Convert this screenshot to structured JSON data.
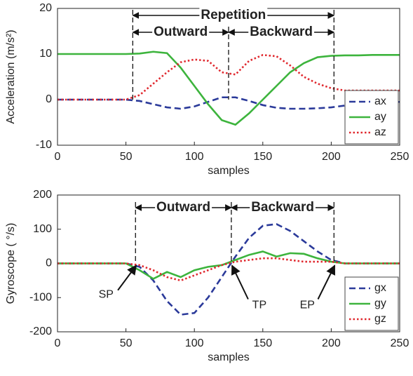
{
  "chart_data": [
    {
      "type": "line",
      "ylabel": "Acceleration (m/s²)",
      "xlabel": "samples",
      "x": [
        0,
        10,
        20,
        30,
        40,
        50,
        60,
        70,
        80,
        90,
        100,
        110,
        120,
        130,
        140,
        150,
        160,
        170,
        180,
        190,
        200,
        210,
        220,
        230,
        240,
        250
      ],
      "series": [
        {
          "name": "ax",
          "color": "#2b3a9a",
          "dash": "dashed",
          "values": [
            0,
            0,
            0,
            0,
            0,
            0,
            -0.3,
            -1,
            -1.7,
            -2,
            -1.5,
            -0.5,
            0.5,
            0.5,
            -0.3,
            -1.2,
            -1.8,
            -2,
            -2,
            -1.9,
            -1.7,
            -1.3,
            -1,
            -0.8,
            -0.6,
            -0.5
          ]
        },
        {
          "name": "ay",
          "color": "#3db43d",
          "dash": "solid",
          "values": [
            10,
            10,
            10,
            10,
            10,
            10,
            10.1,
            10.5,
            10.2,
            7,
            3,
            -1,
            -4.5,
            -5.5,
            -3,
            0,
            3,
            6,
            8,
            9.3,
            9.6,
            9.7,
            9.7,
            9.8,
            9.8,
            9.8
          ]
        },
        {
          "name": "az",
          "color": "#e0282e",
          "dash": "dotted",
          "values": [
            0,
            0,
            0,
            0,
            0,
            0,
            1,
            3.5,
            6,
            8.2,
            8.8,
            8.5,
            6,
            5.5,
            8.5,
            9.8,
            9.5,
            7.5,
            5,
            3.5,
            2.5,
            2,
            2,
            2,
            2,
            2
          ]
        }
      ],
      "xlim": [
        0,
        250
      ],
      "xticks": [
        0,
        50,
        100,
        150,
        200,
        250
      ],
      "ylim": [
        -10,
        20
      ],
      "yticks": [
        -10,
        0,
        10,
        20
      ],
      "legend": "lower right",
      "spans": [
        {
          "label": "Repetition",
          "from": 55,
          "to": 202
        },
        {
          "label": "Outward",
          "from": 55,
          "to": 125
        },
        {
          "label": "Backward",
          "from": 125,
          "to": 202
        }
      ]
    },
    {
      "type": "line",
      "ylabel": "Gyroscope ( °/s)",
      "xlabel": "samples",
      "x": [
        0,
        10,
        20,
        30,
        40,
        50,
        60,
        70,
        80,
        90,
        100,
        110,
        120,
        130,
        140,
        150,
        160,
        170,
        180,
        190,
        200,
        210,
        220,
        230,
        240,
        250
      ],
      "series": [
        {
          "name": "gx",
          "color": "#2b3a9a",
          "dash": "dashed",
          "values": [
            0,
            0,
            0,
            0,
            0,
            0,
            -10,
            -50,
            -110,
            -150,
            -145,
            -100,
            -40,
            20,
            75,
            110,
            115,
            95,
            65,
            35,
            10,
            0,
            0,
            0,
            0,
            0
          ]
        },
        {
          "name": "gy",
          "color": "#3db43d",
          "dash": "solid",
          "values": [
            0,
            0,
            0,
            0,
            0,
            0,
            -20,
            -45,
            -25,
            -40,
            -20,
            -10,
            -5,
            10,
            25,
            35,
            20,
            30,
            28,
            15,
            5,
            0,
            0,
            0,
            0,
            0
          ]
        },
        {
          "name": "gz",
          "color": "#e0282e",
          "dash": "dotted",
          "values": [
            0,
            0,
            0,
            0,
            0,
            0,
            -5,
            -20,
            -40,
            -50,
            -35,
            -20,
            -5,
            5,
            10,
            15,
            15,
            10,
            5,
            5,
            5,
            0,
            0,
            0,
            0,
            0
          ]
        }
      ],
      "xlim": [
        0,
        250
      ],
      "xticks": [
        0,
        50,
        100,
        150,
        200,
        250
      ],
      "ylim": [
        -200,
        200
      ],
      "yticks": [
        -200,
        -100,
        0,
        100,
        200
      ],
      "legend": "lower right",
      "spans": [
        {
          "label": "Outward",
          "from": 57,
          "to": 127
        },
        {
          "label": "Backward",
          "from": 127,
          "to": 202
        }
      ],
      "events": [
        {
          "label": "SP",
          "x": 57,
          "y": 0
        },
        {
          "label": "TP",
          "x": 127,
          "y": 0
        },
        {
          "label": "EP",
          "x": 202,
          "y": 0
        }
      ]
    }
  ]
}
